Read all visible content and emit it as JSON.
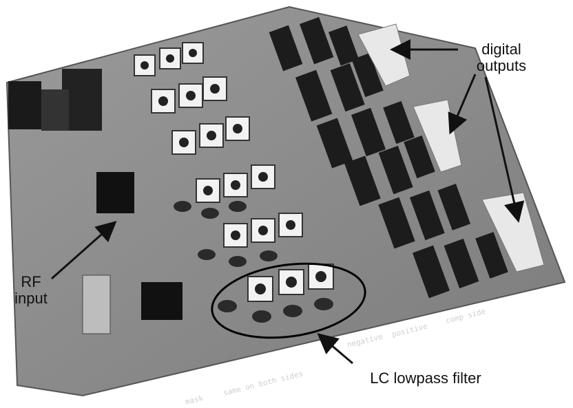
{
  "annotations": {
    "digital_outputs": [
      "digital",
      "outputs"
    ],
    "rf_input": [
      "RF",
      "input"
    ],
    "lc_filter": "LC lowpass filter"
  },
  "board_silkscreen": {
    "side_label_negative": "negative",
    "side_label_positive": "positive",
    "side_label_comp": "comp side",
    "bottom_note": "same on both sides",
    "mask_note": "mask"
  },
  "colors": {
    "board": "#8a8a8a",
    "arrow": "#111111",
    "background": "#ffffff"
  }
}
